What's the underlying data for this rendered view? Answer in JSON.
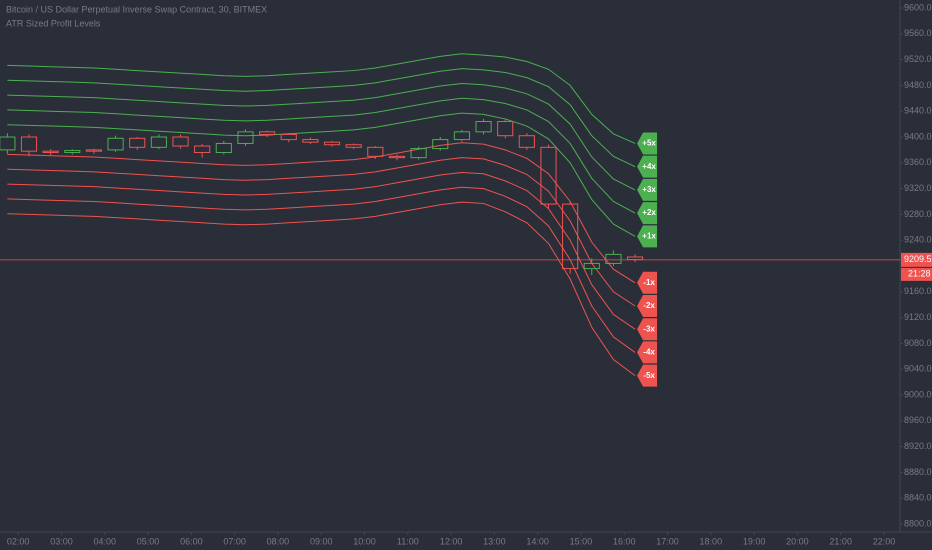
{
  "chart_data": {
    "type": "candlestick",
    "title": "Bitcoin / US Dollar Perpetual Inverse Swap Contract, 30, BITMEX",
    "indicator": "ATR Sized Profit Levels",
    "x": [
      1.75,
      2.25,
      2.75,
      3.25,
      3.75,
      4.25,
      4.75,
      5.25,
      5.75,
      6.25,
      6.75,
      7.25,
      7.75,
      8.25,
      8.75,
      9.25,
      9.75,
      10.25,
      10.75,
      11.25,
      11.75,
      12.25,
      12.75,
      13.25,
      13.75,
      14.25,
      14.75,
      15.25,
      15.75,
      16.25
    ],
    "open": [
      9380,
      9400,
      9378,
      9376,
      9380,
      9380,
      9398,
      9384,
      9400,
      9386,
      9376,
      9390,
      9408,
      9404,
      9396,
      9392,
      9388,
      9384,
      9370,
      9368,
      9382,
      9396,
      9408,
      9424,
      9402,
      9384,
      9296,
      9196,
      9204,
      9214
    ],
    "high": [
      9406,
      9404,
      9381,
      9381,
      9382,
      9402,
      9400,
      9404,
      9404,
      9389,
      9394,
      9412,
      9410,
      9406,
      9399,
      9394,
      9390,
      9386,
      9373,
      9385,
      9400,
      9411,
      9428,
      9427,
      9406,
      9388,
      9300,
      9212,
      9224,
      9218
    ],
    "low": [
      9374,
      9370,
      9372,
      9373,
      9374,
      9377,
      9380,
      9381,
      9382,
      9368,
      9373,
      9386,
      9400,
      9392,
      9389,
      9385,
      9381,
      9366,
      9364,
      9365,
      9379,
      9393,
      9404,
      9398,
      9380,
      9290,
      9188,
      9186,
      9200,
      9206
    ],
    "close": [
      9400,
      9378,
      9376,
      9379,
      9378,
      9398,
      9384,
      9400,
      9386,
      9376,
      9390,
      9408,
      9404,
      9396,
      9392,
      9388,
      9384,
      9370,
      9368,
      9382,
      9396,
      9408,
      9424,
      9402,
      9384,
      9296,
      9196,
      9204,
      9218,
      9210
    ],
    "up_color": "#4caf50",
    "down_color": "#ef5350",
    "series": [
      {
        "name": "+5x",
        "color": "#4caf50",
        "values": [
          9511,
          9510,
          9509,
          9508,
          9507,
          9505,
          9503,
          9501,
          9499,
          9497,
          9495,
          9494,
          9495,
          9497,
          9499,
          9501,
          9503,
          9507,
          9513,
          9519,
          9525,
          9529,
          9527,
          9524,
          9517,
          9505,
          9480,
          9435,
          9405,
          9390
        ]
      },
      {
        "name": "+4x",
        "color": "#4caf50",
        "values": [
          9488,
          9487,
          9486,
          9485,
          9484,
          9482,
          9480,
          9478,
          9476,
          9474,
          9472,
          9471,
          9472,
          9474,
          9476,
          9478,
          9480,
          9484,
          9490,
          9496,
          9502,
          9506,
          9504,
          9500,
          9492,
          9478,
          9450,
          9402,
          9370,
          9354
        ]
      },
      {
        "name": "+3x",
        "color": "#4caf50",
        "values": [
          9465,
          9464,
          9463,
          9462,
          9461,
          9459,
          9457,
          9455,
          9453,
          9451,
          9449,
          9448,
          9449,
          9451,
          9453,
          9455,
          9457,
          9461,
          9467,
          9473,
          9479,
          9483,
          9481,
          9476,
          9467,
          9451,
          9420,
          9369,
          9335,
          9318
        ]
      },
      {
        "name": "+2x",
        "color": "#4caf50",
        "values": [
          9442,
          9441,
          9440,
          9439,
          9438,
          9436,
          9434,
          9432,
          9430,
          9428,
          9426,
          9425,
          9426,
          9428,
          9430,
          9432,
          9434,
          9438,
          9444,
          9450,
          9456,
          9460,
          9458,
          9452,
          9442,
          9424,
          9390,
          9336,
          9300,
          9282
        ]
      },
      {
        "name": "+1x",
        "color": "#4caf50",
        "values": [
          9419,
          9418,
          9417,
          9416,
          9415,
          9413,
          9411,
          9409,
          9407,
          9405,
          9403,
          9402,
          9403,
          9405,
          9407,
          9409,
          9411,
          9415,
          9421,
          9427,
          9433,
          9437,
          9435,
          9428,
          9417,
          9397,
          9360,
          9303,
          9265,
          9246
        ]
      },
      {
        "name": "-1x",
        "color": "#ef5350",
        "values": [
          9373,
          9372,
          9371,
          9370,
          9369,
          9367,
          9365,
          9363,
          9361,
          9359,
          9357,
          9356,
          9357,
          9359,
          9361,
          9363,
          9365,
          9369,
          9375,
          9381,
          9387,
          9391,
          9389,
          9380,
          9367,
          9343,
          9300,
          9237,
          9195,
          9174
        ]
      },
      {
        "name": "-2x",
        "color": "#ef5350",
        "values": [
          9350,
          9349,
          9348,
          9347,
          9346,
          9344,
          9342,
          9340,
          9338,
          9336,
          9334,
          9333,
          9334,
          9336,
          9338,
          9340,
          9342,
          9346,
          9352,
          9358,
          9364,
          9368,
          9366,
          9356,
          9342,
          9316,
          9270,
          9204,
          9160,
          9138
        ]
      },
      {
        "name": "-3x",
        "color": "#ef5350",
        "values": [
          9327,
          9326,
          9325,
          9324,
          9323,
          9321,
          9319,
          9317,
          9315,
          9313,
          9311,
          9310,
          9311,
          9313,
          9315,
          9317,
          9319,
          9323,
          9329,
          9335,
          9341,
          9345,
          9343,
          9332,
          9317,
          9289,
          9240,
          9171,
          9125,
          9102
        ]
      },
      {
        "name": "-4x",
        "color": "#ef5350",
        "values": [
          9304,
          9303,
          9302,
          9301,
          9300,
          9298,
          9296,
          9294,
          9292,
          9290,
          9288,
          9287,
          9288,
          9290,
          9292,
          9294,
          9296,
          9300,
          9306,
          9312,
          9318,
          9322,
          9320,
          9308,
          9292,
          9262,
          9210,
          9138,
          9090,
          9066
        ]
      },
      {
        "name": "-5x",
        "color": "#ef5350",
        "values": [
          9281,
          9280,
          9279,
          9278,
          9277,
          9275,
          9273,
          9271,
          9269,
          9267,
          9265,
          9264,
          9265,
          9267,
          9269,
          9271,
          9273,
          9277,
          9283,
          9289,
          9295,
          9299,
          9297,
          9284,
          9267,
          9235,
          9180,
          9105,
          9055,
          9030
        ]
      }
    ],
    "last_price": 9209.5,
    "last_price_color": "#ef5350",
    "countdown": "21:28",
    "xlim": [
      1.58,
      22.37
    ],
    "ylim": [
      8787.6,
      9612.4
    ],
    "yticks": [
      {
        "value": 9600,
        "label": "9600.0"
      },
      {
        "value": 9560,
        "label": "9560.0"
      },
      {
        "value": 9520,
        "label": "9520.0"
      },
      {
        "value": 9480,
        "label": "9480.0"
      },
      {
        "value": 9440,
        "label": "9440.0"
      },
      {
        "value": 9400,
        "label": "9400.0"
      },
      {
        "value": 9360,
        "label": "9360.0"
      },
      {
        "value": 9320,
        "label": "9320.0"
      },
      {
        "value": 9280,
        "label": "9280.0"
      },
      {
        "value": 9240,
        "label": "9240.0"
      },
      {
        "value": 9160,
        "label": "9160.0"
      },
      {
        "value": 9120,
        "label": "9120.0"
      },
      {
        "value": 9080,
        "label": "9080.0"
      },
      {
        "value": 9040,
        "label": "9040.0"
      },
      {
        "value": 9000,
        "label": "9000.0"
      },
      {
        "value": 8960,
        "label": "8960.0"
      },
      {
        "value": 8920,
        "label": "8920.0"
      },
      {
        "value": 8880,
        "label": "8880.0"
      },
      {
        "value": 8840,
        "label": "8840.0"
      },
      {
        "value": 8800,
        "label": "8800.0"
      }
    ],
    "xticks": [
      {
        "value": 2,
        "label": "02:00"
      },
      {
        "value": 3,
        "label": "03:00"
      },
      {
        "value": 4,
        "label": "04:00"
      },
      {
        "value": 5,
        "label": "05:00"
      },
      {
        "value": 6,
        "label": "06:00"
      },
      {
        "value": 7,
        "label": "07:00"
      },
      {
        "value": 8,
        "label": "08:00"
      },
      {
        "value": 9,
        "label": "09:00"
      },
      {
        "value": 10,
        "label": "10:00"
      },
      {
        "value": 11,
        "label": "11:00"
      },
      {
        "value": 12,
        "label": "12:00"
      },
      {
        "value": 13,
        "label": "13:00"
      },
      {
        "value": 14,
        "label": "14:00"
      },
      {
        "value": 15,
        "label": "15:00"
      },
      {
        "value": 16,
        "label": "16:00"
      },
      {
        "value": 17,
        "label": "17:00"
      },
      {
        "value": 18,
        "label": "18:00"
      },
      {
        "value": 19,
        "label": "19:00"
      },
      {
        "value": 20,
        "label": "20:00"
      },
      {
        "value": 21,
        "label": "21:00"
      },
      {
        "value": 22,
        "label": "22:00"
      }
    ]
  }
}
